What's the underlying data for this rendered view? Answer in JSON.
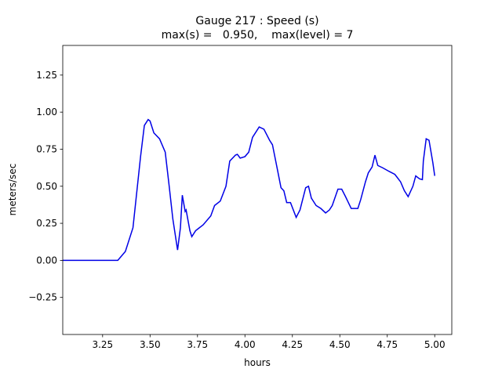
{
  "chart_data": {
    "type": "line",
    "title": "Gauge 217 : Speed (s)",
    "subtitle": "max(s) =   0.950,    max(level) = 7",
    "x_label": "hours",
    "y_label": "meters/sec",
    "xlim": [
      3.04,
      5.09
    ],
    "ylim": [
      -0.5,
      1.45
    ],
    "xticks": [
      {
        "value": 3.25,
        "label": "3.25"
      },
      {
        "value": 3.5,
        "label": "3.50"
      },
      {
        "value": 3.75,
        "label": "3.75"
      },
      {
        "value": 4,
        "label": "4.00"
      },
      {
        "value": 4.25,
        "label": "4.25"
      },
      {
        "value": 4.5,
        "label": "4.50"
      },
      {
        "value": 4.75,
        "label": "4.75"
      },
      {
        "value": 5,
        "label": "5.00"
      }
    ],
    "yticks": [
      {
        "value": -0.25,
        "label": "−0.25"
      },
      {
        "value": 0,
        "label": "0.00"
      },
      0.25,
      {
        "value": 0.5,
        "label": "0.50"
      },
      0.75,
      {
        "value": 1,
        "label": "1.00"
      },
      1.25
    ],
    "x": [
      3.04,
      3.33,
      3.37,
      3.41,
      3.45,
      3.47,
      3.49,
      3.5,
      3.52,
      3.55,
      3.58,
      3.6,
      3.62,
      3.645,
      3.66,
      3.67,
      3.685,
      3.69,
      3.71,
      3.72,
      3.74,
      3.78,
      3.82,
      3.84,
      3.87,
      3.9,
      3.92,
      3.95,
      3.96,
      3.975,
      4.0,
      4.02,
      4.04,
      4.075,
      4.1,
      4.13,
      4.145,
      4.17,
      4.19,
      4.205,
      4.22,
      4.24,
      4.27,
      4.29,
      4.32,
      4.335,
      4.35,
      4.375,
      4.4,
      4.425,
      4.445,
      4.46,
      4.49,
      4.51,
      4.53,
      4.56,
      4.595,
      4.61,
      4.635,
      4.65,
      4.67,
      4.685,
      4.7,
      4.725,
      4.76,
      4.79,
      4.82,
      4.84,
      4.86,
      4.885,
      4.9,
      4.92,
      4.935,
      4.94,
      4.955,
      4.97,
      4.99,
      5.0
    ],
    "series": [
      {
        "color": "#0000e6",
        "values": [
          0.0,
          0.0,
          0.06,
          0.22,
          0.7,
          0.91,
          0.95,
          0.94,
          0.86,
          0.82,
          0.73,
          0.51,
          0.28,
          0.07,
          0.22,
          0.44,
          0.33,
          0.34,
          0.2,
          0.16,
          0.2,
          0.24,
          0.3,
          0.37,
          0.4,
          0.5,
          0.67,
          0.71,
          0.715,
          0.69,
          0.7,
          0.73,
          0.83,
          0.9,
          0.885,
          0.81,
          0.78,
          0.62,
          0.49,
          0.47,
          0.39,
          0.39,
          0.29,
          0.34,
          0.49,
          0.5,
          0.42,
          0.37,
          0.35,
          0.32,
          0.34,
          0.37,
          0.48,
          0.48,
          0.43,
          0.35,
          0.35,
          0.41,
          0.53,
          0.59,
          0.63,
          0.71,
          0.64,
          0.625,
          0.6,
          0.58,
          0.53,
          0.47,
          0.43,
          0.5,
          0.57,
          0.55,
          0.545,
          0.67,
          0.82,
          0.81,
          0.66,
          0.57
        ]
      }
    ]
  }
}
